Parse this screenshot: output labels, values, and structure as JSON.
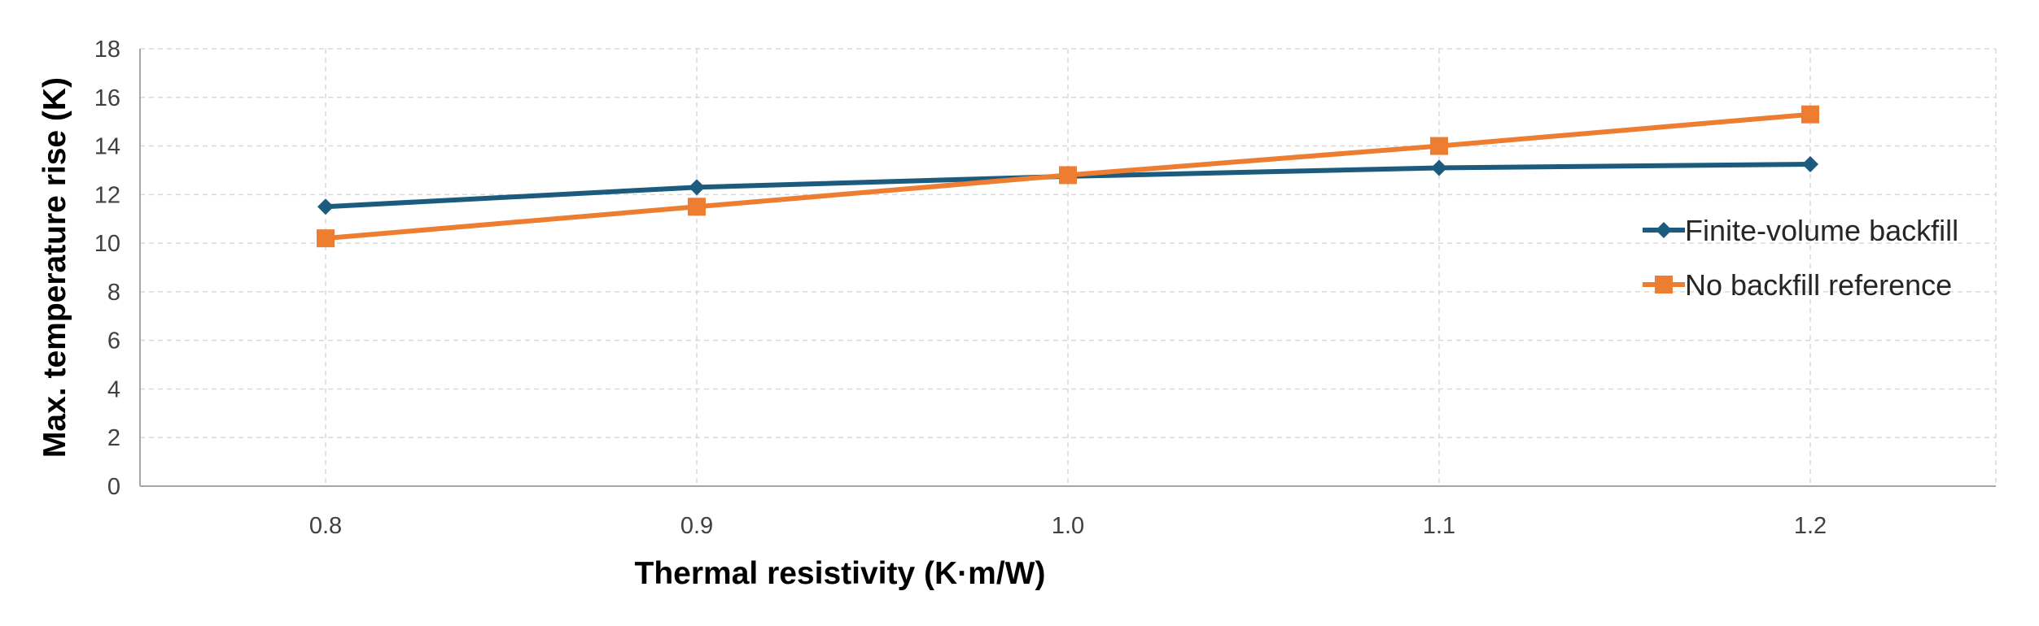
{
  "chart_data": {
    "type": "line",
    "x": [
      0.8,
      0.9,
      1.0,
      1.1,
      1.2
    ],
    "x_tick_labels": [
      "0.8",
      "0.9",
      "1.0",
      "1.1",
      "1.2"
    ],
    "xlim": [
      0.75,
      1.25
    ],
    "ylim": [
      0,
      18
    ],
    "y_ticks": [
      0,
      2,
      4,
      6,
      8,
      10,
      12,
      14,
      16,
      18
    ],
    "xlabel": "Thermal resistivity (K·m/W)",
    "ylabel": "Max. temperature rise (K)",
    "grid": true,
    "legend_position": "right",
    "series": [
      {
        "name": "Finite-volume backfill",
        "values": [
          11.5,
          12.3,
          12.75,
          13.1,
          13.25
        ],
        "color": "#1b5b7e",
        "marker": "diamond"
      },
      {
        "name": "No backfill reference",
        "values": [
          10.2,
          11.5,
          12.8,
          14.0,
          15.3
        ],
        "color": "#ed7d31",
        "marker": "square"
      }
    ]
  }
}
